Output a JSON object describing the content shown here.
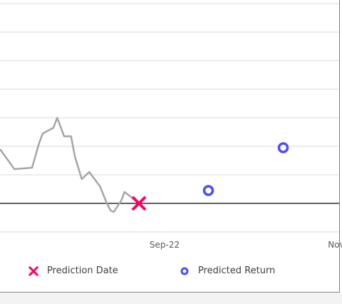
{
  "chart_data": {
    "type": "line",
    "x_ticks": [
      "Sep-22",
      "Nov"
    ],
    "ylim": [
      0,
      8
    ],
    "grid": true,
    "baseline": 0,
    "series": [
      {
        "name": "",
        "color": "#a6a6a6",
        "x": [
          0.0,
          0.27,
          0.6,
          0.73,
          0.8,
          1.0,
          1.07,
          1.2,
          1.33,
          1.4,
          1.53,
          1.67,
          1.73,
          1.87,
          2.0,
          2.07,
          2.13,
          2.27,
          2.33,
          2.47,
          2.6
        ],
        "values": [
          1.9,
          1.2,
          1.25,
          2.1,
          2.45,
          2.65,
          3.0,
          2.35,
          2.35,
          1.65,
          0.85,
          1.1,
          0.95,
          0.6,
          0.0,
          -0.25,
          -0.3,
          0.1,
          0.4,
          0.2,
          0.0
        ]
      },
      {
        "name": "Prediction Date",
        "type": "scatter",
        "marker": "x",
        "color": "#ff0066",
        "x": [
          2.6
        ],
        "values": [
          0.0
        ]
      },
      {
        "name": "Predicted Return",
        "type": "scatter",
        "marker": "open-circle",
        "color": "#4d4dff",
        "x": [
          3.9,
          5.3
        ],
        "values": [
          0.45,
          1.95
        ]
      }
    ]
  },
  "legend": [
    {
      "label": "Prediction Date",
      "icon": "x-marker-icon",
      "color": "#ff0066"
    },
    {
      "label": "Predicted Return",
      "icon": "circle-marker-icon",
      "color": "#4d4dff"
    }
  ]
}
